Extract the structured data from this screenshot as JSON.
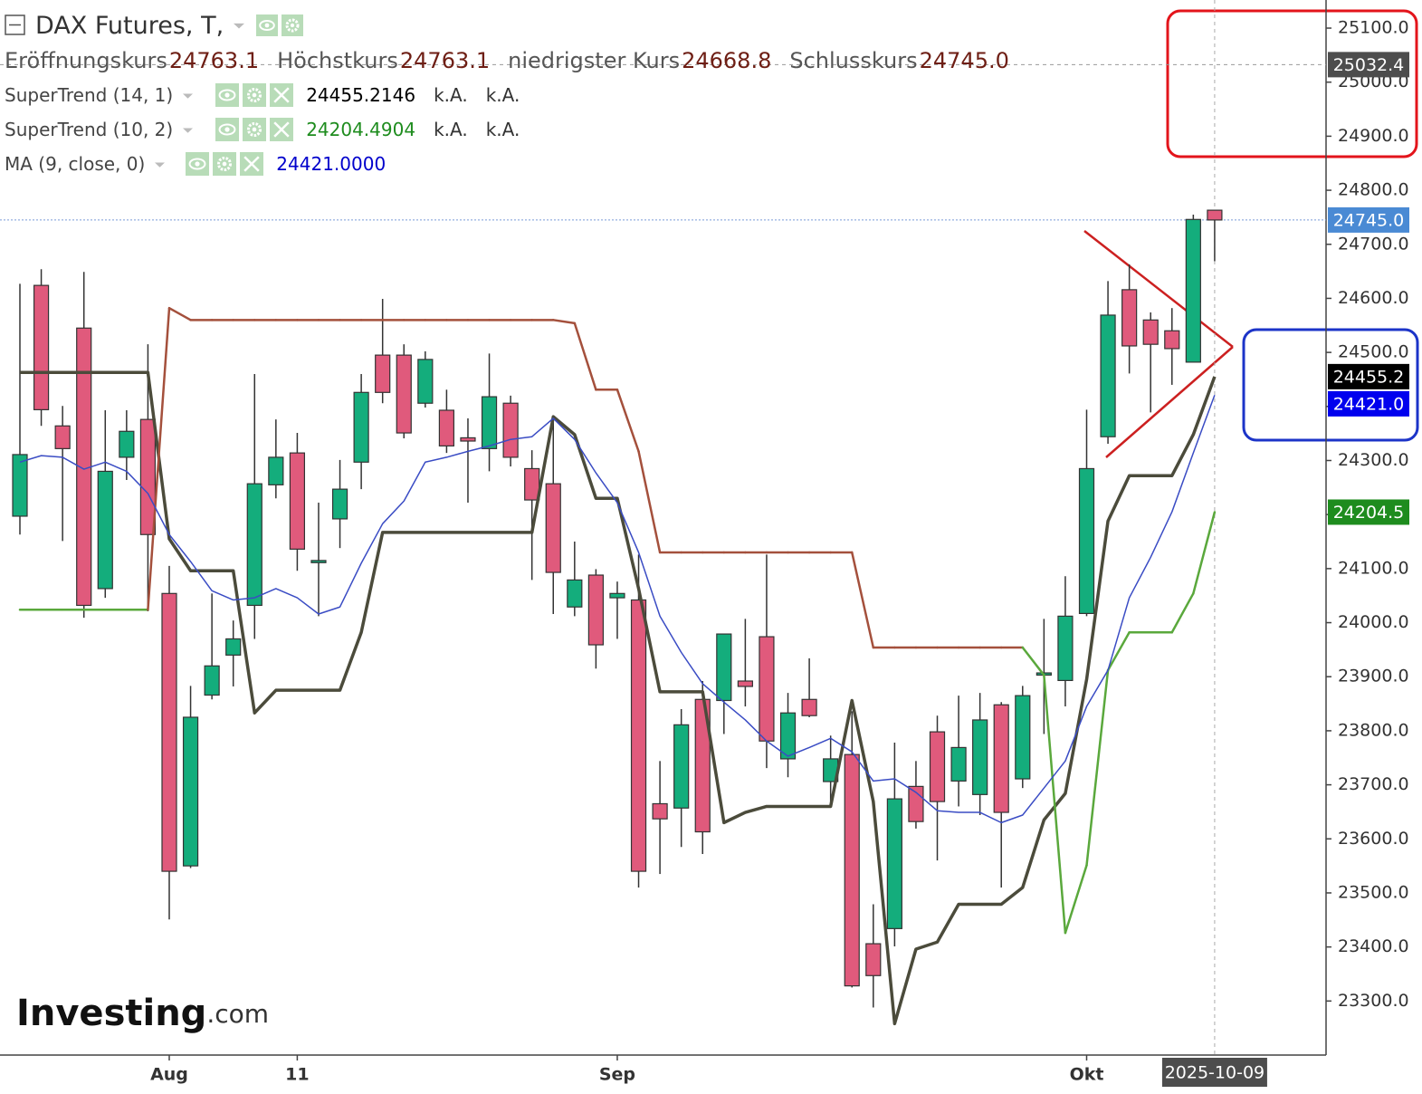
{
  "chart_data": {
    "type": "candlestick",
    "title": "DAX Futures, T,",
    "quote": [
      {
        "name": "Eröffnungskurs",
        "label": "24763.1"
      },
      {
        "name": "Höchstkurs",
        "label": "24763.1"
      },
      {
        "name": "niedrigster Kurs",
        "label": "24668.8"
      },
      {
        "name": "Schlusskurs",
        "label": "24745.0"
      }
    ],
    "categories": [
      null,
      null,
      null,
      null,
      null,
      null,
      null,
      "Aug",
      null,
      null,
      null,
      null,
      null,
      "11",
      null,
      null,
      null,
      null,
      null,
      null,
      null,
      null,
      null,
      null,
      null,
      null,
      null,
      null,
      "Sep",
      null,
      null,
      null,
      null,
      null,
      null,
      null,
      null,
      null,
      null,
      null,
      null,
      null,
      null,
      null,
      null,
      null,
      null,
      null,
      null,
      null,
      "Okt",
      null,
      null,
      null,
      null,
      null,
      null
    ],
    "open": [
      24197,
      24624,
      24364,
      24545,
      24063,
      24306,
      24376,
      24054,
      23550,
      23866,
      23940,
      24032,
      24255,
      24314,
      24111,
      24192,
      24297,
      24495,
      24495,
      24406,
      24393,
      24342,
      24322,
      24406,
      24285,
      24257,
      24029,
      24088,
      24046,
      24042,
      23665,
      23657,
      23858,
      23856,
      23892,
      23974,
      23748,
      23858,
      23706,
      23756,
      23406,
      23434,
      23697,
      23798,
      23707,
      23682,
      23848,
      23711,
      23903,
      23893,
      24017,
      24344,
      24616,
      24560,
      24540,
      24482,
      24763.1
    ],
    "high": [
      24627,
      24654,
      24401,
      24649,
      24393,
      24393,
      24515,
      24105,
      23883,
      24054,
      24004,
      24460,
      24376,
      24351,
      24222,
      24301,
      24460,
      24599,
      24515,
      24502,
      24431,
      24378,
      24498,
      24420,
      24319,
      24378,
      24150,
      24099,
      24076,
      24126,
      23744,
      23840,
      23892,
      23979,
      24007,
      24126,
      23870,
      23934,
      23791,
      23836,
      23479,
      23778,
      23744,
      23828,
      23865,
      23870,
      23853,
      23883,
      24007,
      24086,
      24394,
      24632,
      24663,
      24574,
      24582,
      24755,
      24763.1
    ],
    "low": [
      24163,
      24364,
      24151,
      24009,
      24046,
      24264,
      24021,
      23451,
      23546,
      23858,
      23882,
      23970,
      24230,
      24096,
      24012,
      24138,
      24247,
      24406,
      24341,
      24398,
      24314,
      24222,
      24280,
      24289,
      24079,
      24016,
      24012,
      23915,
      23970,
      23510,
      23535,
      23585,
      23572,
      23794,
      23845,
      23731,
      23714,
      23825,
      23665,
      23325,
      23288,
      23401,
      23619,
      23560,
      23660,
      23644,
      23510,
      23694,
      23794,
      23845,
      24012,
      24331,
      24461,
      24389,
      24440,
      24482,
      24668.8
    ],
    "close": [
      24311,
      24394,
      24322,
      24032,
      24280,
      24354,
      24163,
      23540,
      23825,
      23920,
      23970,
      24257,
      24306,
      24136,
      24115,
      24247,
      24426,
      24426,
      24351,
      24487,
      24327,
      24336,
      24418,
      24306,
      24227,
      24093,
      24079,
      23959,
      24054,
      23540,
      23637,
      23811,
      23613,
      23979,
      23882,
      23781,
      23833,
      23828,
      23748,
      23328,
      23347,
      23674,
      23632,
      23669,
      23769,
      23820,
      23649,
      23865,
      23907,
      24012,
      24285,
      24569,
      24512,
      24515,
      24507,
      24746,
      24745.0
    ],
    "up_color": "#14ad7c",
    "down_color": "#e05a7c",
    "indicators": [
      {
        "name": "SuperTrend (14, 1)",
        "color": "#4b4b3b",
        "value_color": "#000000",
        "legend_labels": [
          "24455.2146",
          "k.A.",
          "k.A."
        ],
        "values": [
          24463,
          24463,
          24463,
          24463,
          24463,
          24463,
          24463,
          24155,
          24096,
          24096,
          24096,
          23833,
          23875,
          23875,
          23875,
          23875,
          23982,
          24167,
          24167,
          24167,
          24167,
          24167,
          24167,
          24167,
          24167,
          24381,
          24348,
          24230,
          24230,
          24063,
          23872,
          23872,
          23872,
          23630,
          23649,
          23660,
          23660,
          23660,
          23660,
          23856,
          23669,
          23258,
          23396,
          23409,
          23479,
          23479,
          23479,
          23510,
          23635,
          23684,
          23895,
          24188,
          24272,
          24272,
          24272,
          24348,
          24455.2146
        ]
      },
      {
        "name": "SuperTrend (10, 2)",
        "color": "#1e8c1e",
        "value_color": "#1e8c1e",
        "legend_labels": [
          "24204.4904",
          "k.A.",
          "k.A."
        ],
        "values": [
          24024,
          24024,
          24024,
          24024,
          24024,
          24024,
          24024,
          24582,
          24560,
          24560,
          24560,
          24560,
          24560,
          24560,
          24560,
          24560,
          24560,
          24560,
          24560,
          24560,
          24560,
          24560,
          24560,
          24560,
          24560,
          24560,
          24554,
          24431,
          24431,
          24317,
          24130,
          24130,
          24130,
          24130,
          24130,
          24130,
          24130,
          24130,
          24130,
          24130,
          23954,
          23954,
          23954,
          23954,
          23954,
          23954,
          23954,
          23954,
          23903,
          23426,
          23551,
          23912,
          23982,
          23982,
          23982,
          24054,
          24204.4904
        ],
        "point_colors": [
          "#5aa83c",
          "#5aa83c",
          "#5aa83c",
          "#5aa83c",
          "#5aa83c",
          "#5aa83c",
          "#5aa83c",
          "#a4503c",
          "#a4503c",
          "#a4503c",
          "#a4503c",
          "#a4503c",
          "#a4503c",
          "#a4503c",
          "#a4503c",
          "#a4503c",
          "#a4503c",
          "#a4503c",
          "#a4503c",
          "#a4503c",
          "#a4503c",
          "#a4503c",
          "#a4503c",
          "#a4503c",
          "#a4503c",
          "#a4503c",
          "#a4503c",
          "#a4503c",
          "#a4503c",
          "#a4503c",
          "#a4503c",
          "#a4503c",
          "#a4503c",
          "#a4503c",
          "#a4503c",
          "#a4503c",
          "#a4503c",
          "#a4503c",
          "#a4503c",
          "#a4503c",
          "#a4503c",
          "#a4503c",
          "#a4503c",
          "#a4503c",
          "#a4503c",
          "#a4503c",
          "#a4503c",
          "#a4503c",
          "#5aa83c",
          "#5aa83c",
          "#5aa83c",
          "#5aa83c",
          "#5aa83c",
          "#5aa83c",
          "#5aa83c",
          "#5aa83c",
          "#5aa83c"
        ]
      },
      {
        "name": "MA (9, close, 0)",
        "color": "#3a4cc4",
        "value_color": "#0000cc",
        "legend_labels": [
          "24421.0000"
        ],
        "values": [
          24297,
          24309,
          24306,
          24284,
          24297,
          24280,
          24239,
          24163,
          24113,
          24059,
          24042,
          24046,
          24063,
          24046,
          24016,
          24029,
          24110,
          24183,
          24225,
          24297,
          24306,
          24317,
          24327,
          24339,
          24344,
          24378,
          24339,
          24277,
          24222,
          24130,
          24012,
          23945,
          23887,
          23853,
          23820,
          23781,
          23753,
          23769,
          23786,
          23761,
          23707,
          23711,
          23686,
          23652,
          23649,
          23649,
          23630,
          23644,
          23694,
          23744,
          23845,
          23912,
          24046,
          24121,
          24205,
          24314,
          24421
        ]
      }
    ],
    "ylim": [
      23200,
      25152
    ],
    "yticks": [
      {
        "value": 23300,
        "label": "23300.0"
      },
      {
        "value": 23400,
        "label": "23400.0"
      },
      {
        "value": 23500,
        "label": "23500.0"
      },
      {
        "value": 23600,
        "label": "23600.0"
      },
      {
        "value": 23700,
        "label": "23700.0"
      },
      {
        "value": 23800,
        "label": "23800.0"
      },
      {
        "value": 23900,
        "label": "23900.0"
      },
      {
        "value": 24000,
        "label": "24000.0"
      },
      {
        "value": 24100,
        "label": "24100.0"
      },
      {
        "value": 24200,
        "label": "24200.0"
      },
      {
        "value": 24300,
        "label": "24300.0"
      },
      {
        "value": 24400,
        "label": "24400.0"
      },
      {
        "value": 24500,
        "label": "24500.0"
      },
      {
        "value": 24600,
        "label": "24600.0"
      },
      {
        "value": 24700,
        "label": "24700.0"
      },
      {
        "value": 24800,
        "label": "24800.0"
      },
      {
        "value": 24900,
        "label": "24900.0"
      },
      {
        "value": 25000,
        "label": "25000.0"
      },
      {
        "value": 25100,
        "label": "25100.0"
      }
    ],
    "price_labels": [
      {
        "value": 24745.0,
        "label": "24745.0",
        "color": "#4a8ad4"
      },
      {
        "value": 24455.2,
        "label": "24455.2",
        "color": "#000000"
      },
      {
        "value": 24421.0,
        "label": "24421.0",
        "color": "#0000ee"
      },
      {
        "value": 24204.5,
        "label": "24204.5",
        "color": "#1e8c1e"
      }
    ],
    "crosshair": {
      "x_label": "2025-10-09",
      "y": {
        "value": 25032.4,
        "label": "25032.4"
      },
      "color": "#4d4d4d"
    },
    "watermark": "Investing",
    "watermark_suffix": ".com"
  }
}
